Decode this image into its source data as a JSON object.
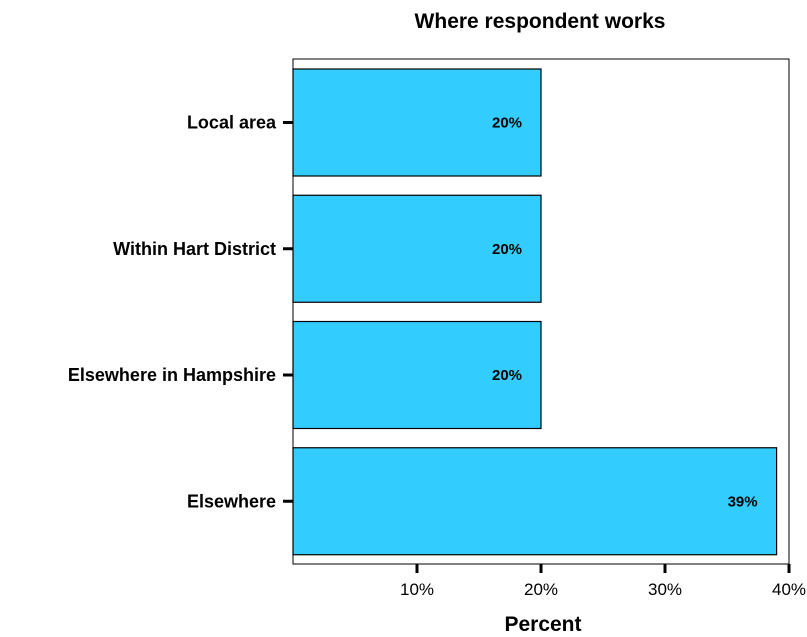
{
  "chart_data": {
    "type": "bar",
    "orientation": "horizontal",
    "title": "Where respondent works",
    "xlabel": "Percent",
    "ylabel": "",
    "categories": [
      "Local area",
      "Within Hart District",
      "Elsewhere in Hampshire",
      "Elsewhere"
    ],
    "values": [
      20,
      20,
      20,
      39
    ],
    "data_labels": [
      "20%",
      "20%",
      "20%",
      "39%"
    ],
    "xlim": [
      0,
      40
    ],
    "x_ticks": [
      10,
      20,
      30,
      40
    ],
    "x_tick_labels": [
      "10%",
      "20%",
      "30%",
      "40%"
    ],
    "grid": false,
    "legend": "none",
    "colors": {
      "bar_fill": "#33CCFF",
      "bar_stroke": "#000000"
    }
  }
}
